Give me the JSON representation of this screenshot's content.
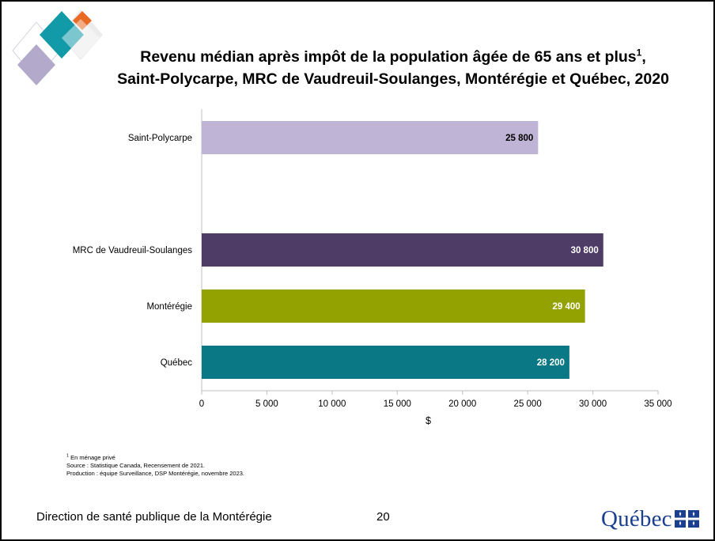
{
  "slide": {
    "title_line1": "Revenu médian après impôt de la population âgée de 65 ans et plus",
    "title_sup": "1",
    "title_line2": "Saint-Polycarpe, MRC de Vaudreuil-Soulanges, Montérégie et Québec, 2020",
    "notes": {
      "note_sup": "1",
      "note_text": " En ménage privé",
      "source": "Source : Statistique Canada, Recensement de 2021.",
      "production": "Production : équipe Surveillance, DSP Montérégie, novembre 2023."
    },
    "footer": "Direction de santé publique de la Montérégie",
    "page_number": "20",
    "quebec_logo_text": "Québec"
  },
  "chart_data": {
    "type": "bar",
    "orientation": "horizontal",
    "categories": [
      "Saint-Polycarpe",
      "MRC de Vaudreuil-Soulanges",
      "Montérégie",
      "Québec"
    ],
    "values": [
      25800,
      30800,
      29400,
      28200
    ],
    "value_labels": [
      "25 800",
      "30 800",
      "29 400",
      "28 200"
    ],
    "bar_colors": [
      "#c0b4d6",
      "#4e3b66",
      "#93a200",
      "#0a7885"
    ],
    "value_label_colors": [
      "#000000",
      "#ffffff",
      "#ffffff",
      "#ffffff"
    ],
    "xlim": [
      0,
      35000
    ],
    "xticks": [
      0,
      5000,
      10000,
      15000,
      20000,
      25000,
      30000,
      35000
    ],
    "xtick_labels": [
      "0",
      "5 000",
      "10 000",
      "15 000",
      "20 000",
      "25 000",
      "30 000",
      "35 000"
    ],
    "xlabel": "$",
    "grid": false
  }
}
